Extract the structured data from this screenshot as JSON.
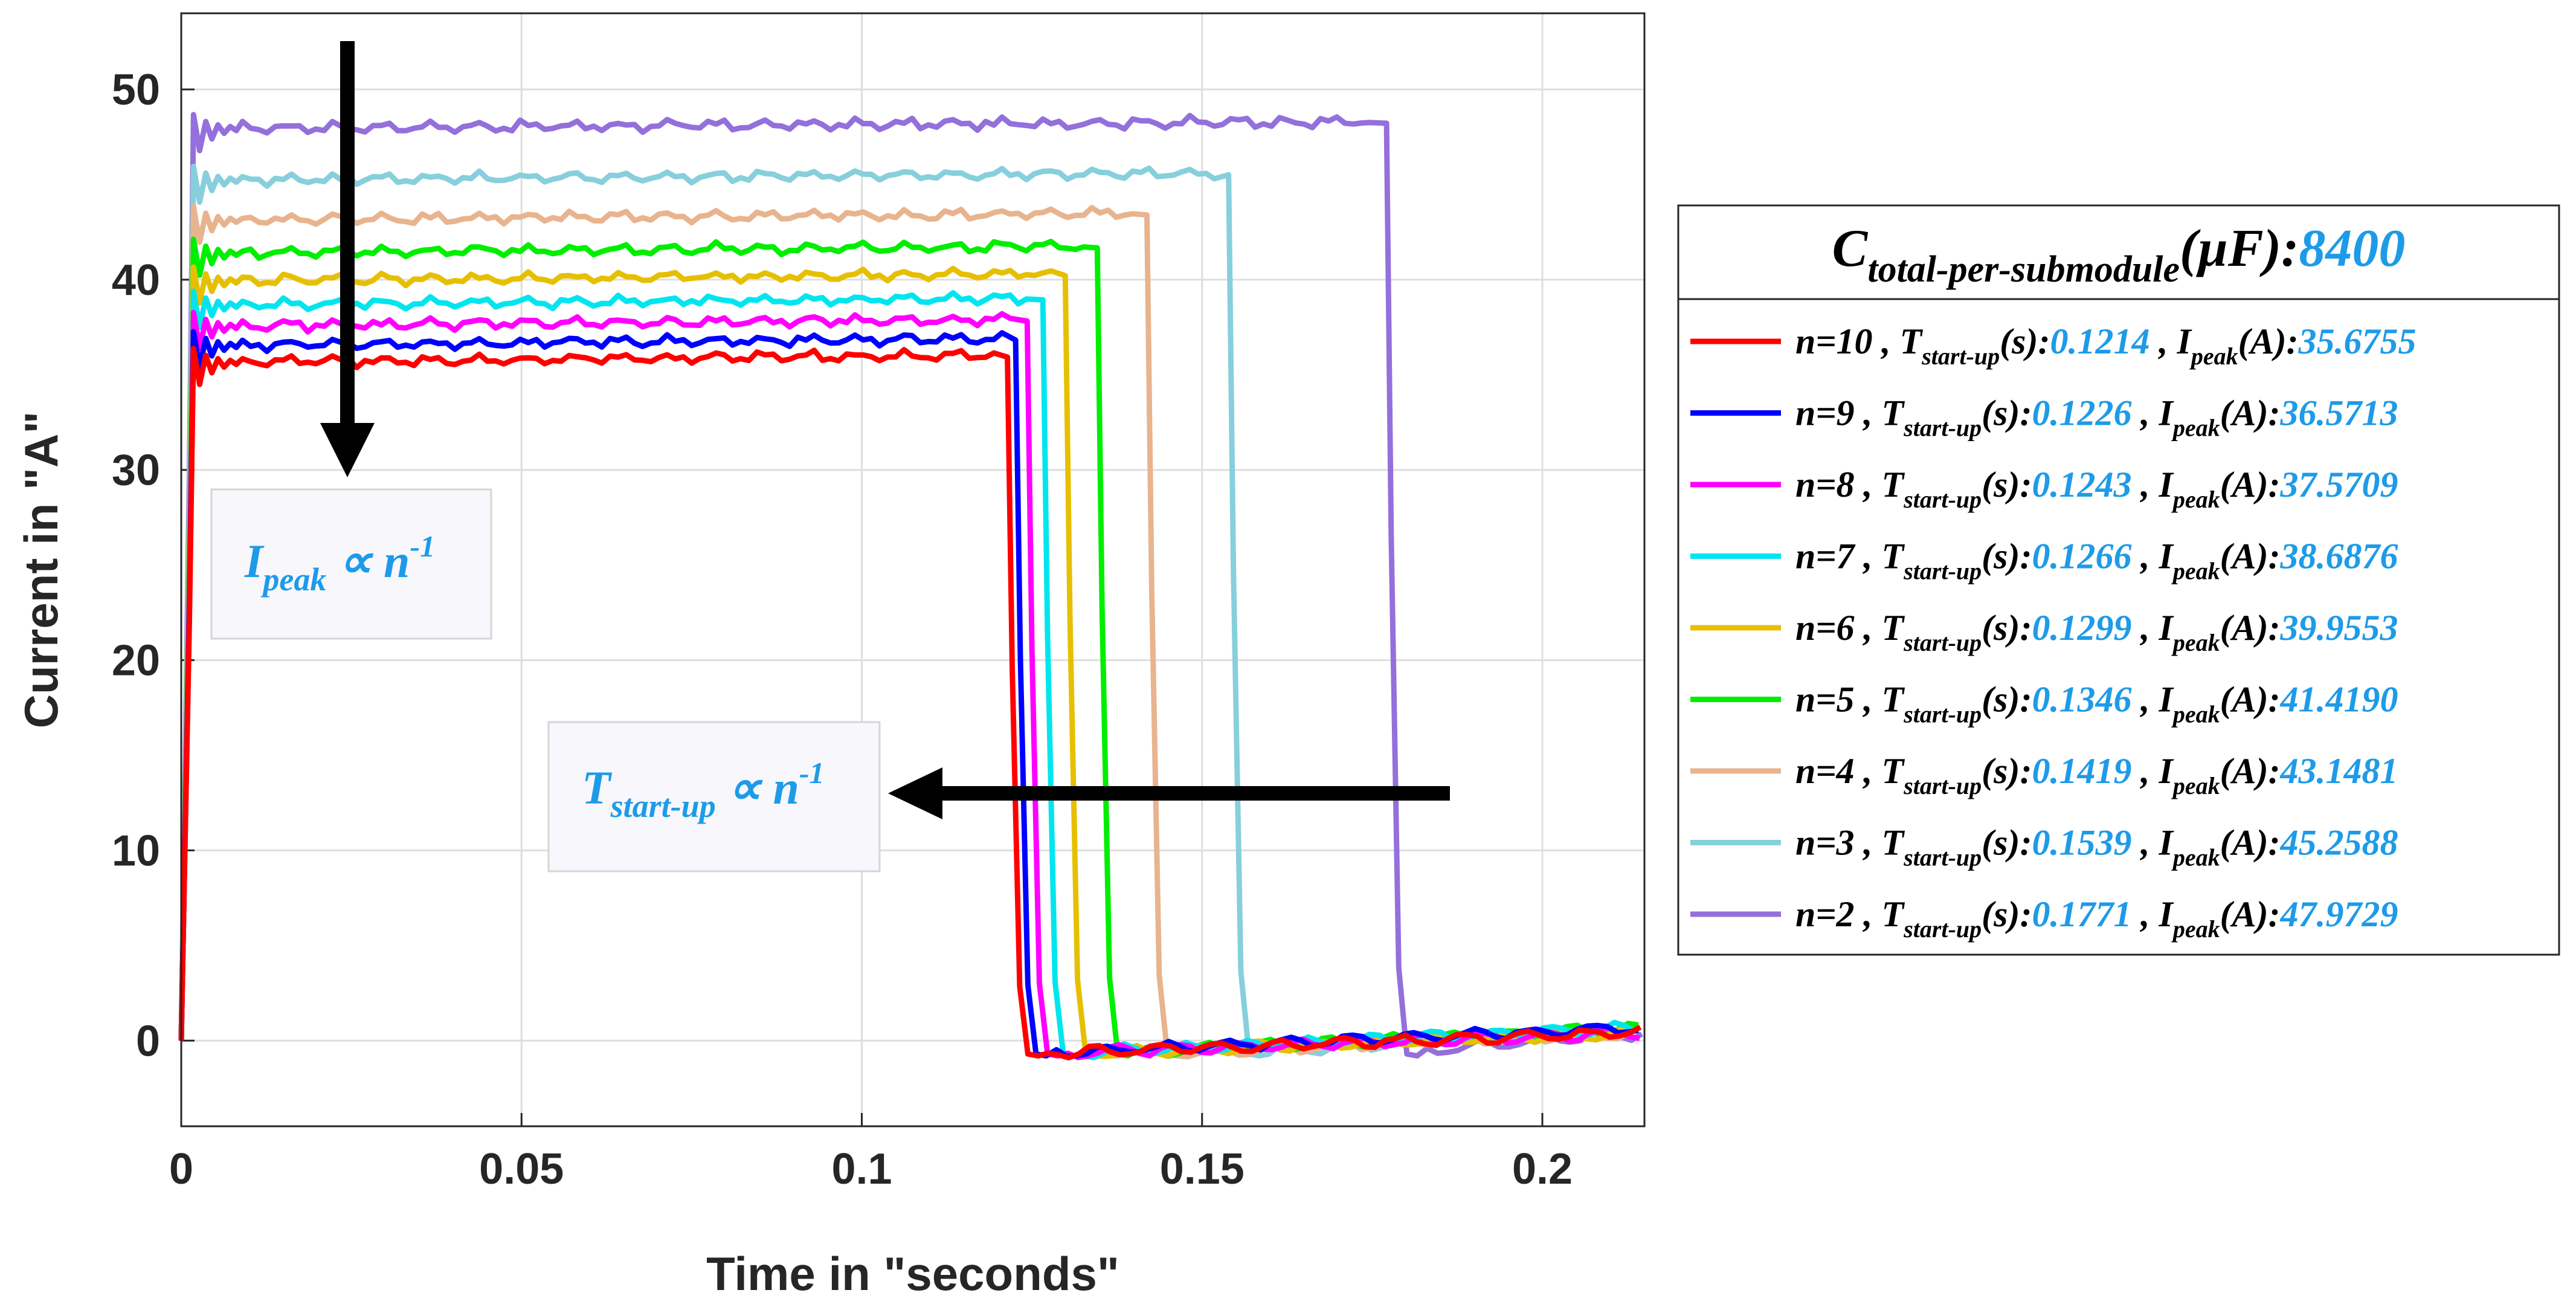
{
  "chart_data": {
    "type": "line",
    "xlabel": "Time in \"seconds\"",
    "ylabel": "Current in \"A\"",
    "xlim": [
      0,
      0.215
    ],
    "ylim": [
      -4.5,
      54
    ],
    "xticks": [
      0,
      0.05,
      0.1,
      0.15,
      0.2
    ],
    "xtick_labels": [
      "0",
      "0.05",
      "0.1",
      "0.15",
      "0.2"
    ],
    "yticks": [
      0,
      10,
      20,
      30,
      40,
      50
    ],
    "ytick_labels": [
      "0",
      "10",
      "20",
      "30",
      "40",
      "50"
    ],
    "grid": true,
    "legend": {
      "title_main": "C",
      "title_sub": "total-per-submodule",
      "title_unit": "(µF):",
      "title_value": "8400",
      "placement": "outside-right"
    },
    "series": [
      {
        "n": "10",
        "name": "n=10",
        "color": "#ff0000",
        "t_startup": "0.1214",
        "i_peak": "35.6755",
        "level": 35.68
      },
      {
        "n": "9",
        "name": "n=9",
        "color": "#0000ff",
        "t_startup": "0.1226",
        "i_peak": "36.5713",
        "level": 36.57
      },
      {
        "n": "8",
        "name": "n=8",
        "color": "#ff00ff",
        "t_startup": "0.1243",
        "i_peak": "37.5709",
        "level": 37.57
      },
      {
        "n": "7",
        "name": "n=7",
        "color": "#00e5ee",
        "t_startup": "0.1266",
        "i_peak": "38.6876",
        "level": 38.69
      },
      {
        "n": "6",
        "name": "n=6",
        "color": "#e6c000",
        "t_startup": "0.1299",
        "i_peak": "39.9553",
        "level": 39.96
      },
      {
        "n": "5",
        "name": "n=5",
        "color": "#00ee00",
        "t_startup": "0.1346",
        "i_peak": "41.4190",
        "level": 41.42
      },
      {
        "n": "4",
        "name": "n=4",
        "color": "#e8b48e",
        "t_startup": "0.1419",
        "i_peak": "43.1481",
        "level": 43.15
      },
      {
        "n": "3",
        "name": "n=3",
        "color": "#87cfdc",
        "t_startup": "0.1539",
        "i_peak": "45.2588",
        "level": 45.26
      },
      {
        "n": "2",
        "name": "n=2",
        "color": "#9370db",
        "t_startup": "0.1771",
        "i_peak": "47.9729",
        "level": 47.97
      }
    ],
    "annotations": [
      {
        "id": "ipeak",
        "main": "I",
        "sub": "peak",
        "rel": " ∝ n",
        "sup": "-1"
      },
      {
        "id": "tstart",
        "main": "T",
        "sub": "start-up",
        "rel": " ∝ n",
        "sup": "-1"
      }
    ]
  }
}
